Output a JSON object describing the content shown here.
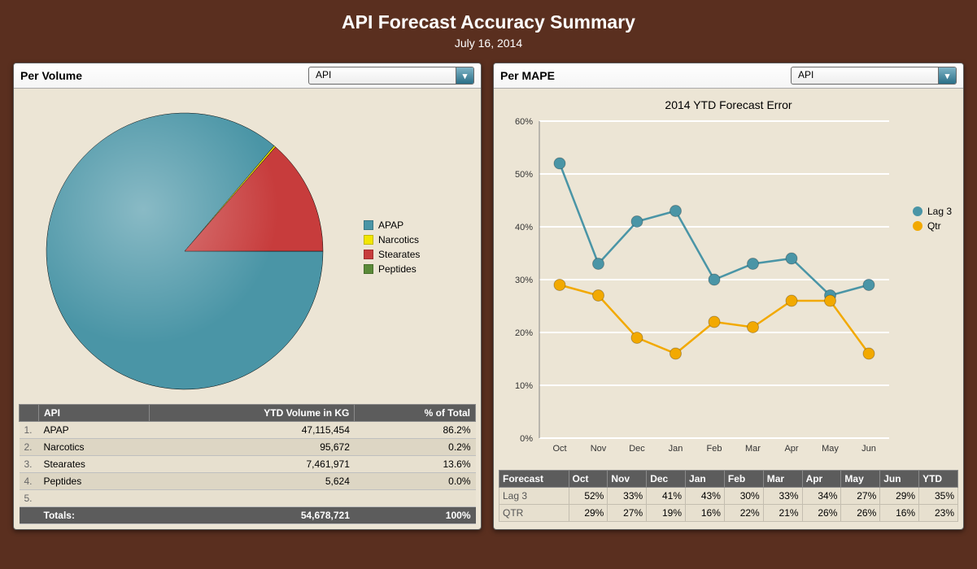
{
  "page": {
    "title": "API Forecast Accuracy Summary",
    "date": "July 16, 2014",
    "background_color": "#5a2f1f",
    "panel_background": "#ece5d5"
  },
  "left": {
    "title": "Per Volume",
    "dropdown_value": "API",
    "pie": {
      "type": "pie",
      "background": "#ece5d5",
      "slices": [
        {
          "label": "APAP",
          "value": 86.2,
          "color": "#4a95a6"
        },
        {
          "label": "Narcotics",
          "value": 0.2,
          "color": "#f2e600"
        },
        {
          "label": "Stearates",
          "value": 13.6,
          "color": "#c73c3c"
        },
        {
          "label": "Peptides",
          "value": 0.0,
          "color": "#5a8a38"
        }
      ],
      "radius": 170,
      "stroke_color": "#000000",
      "stroke_width": 0.5
    },
    "table": {
      "columns": [
        "API",
        "YTD Volume in KG",
        "% of Total"
      ],
      "rows": [
        {
          "idx": "1.",
          "api": "APAP",
          "vol": "47,115,454",
          "pct": "86.2%"
        },
        {
          "idx": "2.",
          "api": "Narcotics",
          "vol": "95,672",
          "pct": "0.2%"
        },
        {
          "idx": "3.",
          "api": "Stearates",
          "vol": "7,461,971",
          "pct": "13.6%"
        },
        {
          "idx": "4.",
          "api": "Peptides",
          "vol": "5,624",
          "pct": "0.0%"
        },
        {
          "idx": "5.",
          "api": "",
          "vol": "",
          "pct": ""
        }
      ],
      "totals": {
        "label": "Totals:",
        "vol": "54,678,721",
        "pct": "100%"
      }
    }
  },
  "right": {
    "title": "Per MAPE",
    "dropdown_value": "API",
    "chart": {
      "type": "line",
      "title": "2014 YTD Forecast Error",
      "background": "#ece5d5",
      "grid_color": "#ffffff",
      "axis_color": "#888888",
      "x_labels": [
        "Oct",
        "Nov",
        "Dec",
        "Jan",
        "Feb",
        "Mar",
        "Apr",
        "May",
        "Jun"
      ],
      "y_min": 0,
      "y_max": 60,
      "y_step": 10,
      "y_suffix": "%",
      "label_fontsize": 11,
      "title_fontsize": 14,
      "marker_radius": 7,
      "line_width": 2.5,
      "series": [
        {
          "name": "Lag 3",
          "color": "#4a95a6",
          "values": [
            52,
            33,
            41,
            43,
            30,
            33,
            34,
            27,
            29
          ]
        },
        {
          "name": "Qtr",
          "color": "#f2a900",
          "values": [
            29,
            27,
            19,
            16,
            22,
            21,
            26,
            26,
            16
          ]
        }
      ]
    },
    "table": {
      "header": [
        "Forecast",
        "Oct",
        "Nov",
        "Dec",
        "Jan",
        "Feb",
        "Mar",
        "Apr",
        "May",
        "Jun",
        "YTD"
      ],
      "rows": [
        {
          "label": "Lag 3",
          "cells": [
            "52%",
            "33%",
            "41%",
            "43%",
            "30%",
            "33%",
            "34%",
            "27%",
            "29%",
            "35%"
          ]
        },
        {
          "label": "QTR",
          "cells": [
            "29%",
            "27%",
            "19%",
            "16%",
            "22%",
            "21%",
            "26%",
            "26%",
            "16%",
            "23%"
          ]
        }
      ]
    }
  }
}
